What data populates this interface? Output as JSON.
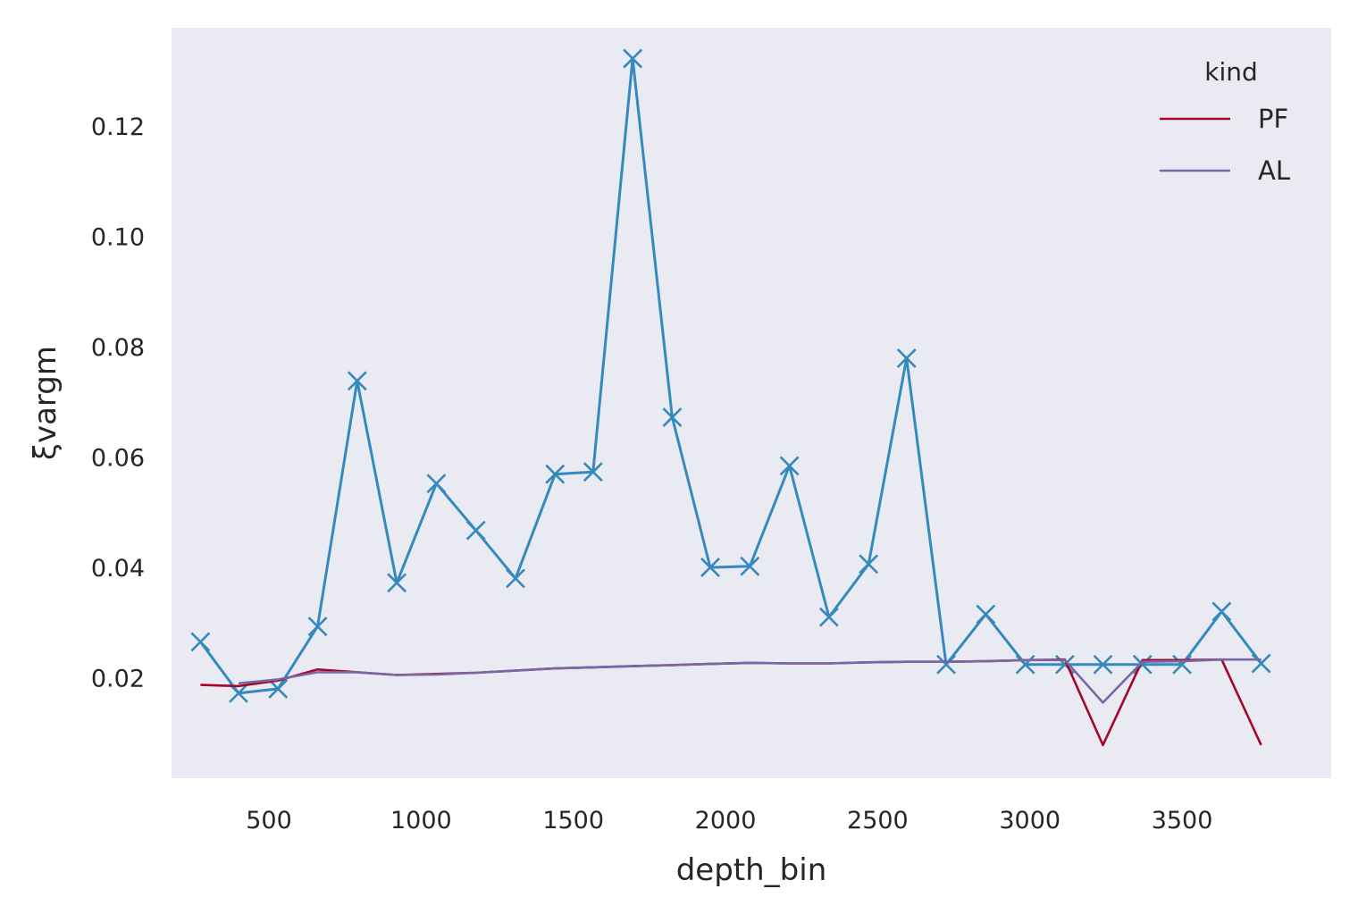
{
  "chart_data": {
    "type": "line",
    "xlabel": "depth_bin",
    "ylabel": "ξvargm",
    "xlim": [
      180,
      3990
    ],
    "ylim": [
      0.0018,
      0.1378
    ],
    "xticks": [
      500,
      1000,
      1500,
      2000,
      2500,
      3000,
      3500
    ],
    "xtick_labels": [
      "500",
      "1000",
      "1500",
      "2000",
      "2500",
      "3000",
      "3500"
    ],
    "yticks": [
      0.02,
      0.04,
      0.06,
      0.08,
      0.1,
      0.12
    ],
    "ytick_labels": [
      "0.02",
      "0.04",
      "0.06",
      "0.08",
      "0.10",
      "0.12"
    ],
    "grid": false,
    "legend": {
      "title": "kind",
      "position": "top-right"
    },
    "series": [
      {
        "name": "PF",
        "color": "#a60628",
        "marker": "none",
        "legend": true,
        "x": [
          275,
          400,
          530,
          660,
          790,
          920,
          1050,
          1180,
          1310,
          1440,
          1565,
          1695,
          1825,
          1950,
          2080,
          2210,
          2340,
          2470,
          2595,
          2725,
          2855,
          2985,
          3115,
          3240,
          3370,
          3500,
          3630,
          3760
        ],
        "y": [
          0.0187,
          0.0185,
          0.0195,
          0.0215,
          0.021,
          0.0205,
          0.0207,
          0.0209,
          0.0213,
          0.0217,
          0.0219,
          0.0221,
          0.0223,
          0.0225,
          0.0227,
          0.0226,
          0.0226,
          0.0228,
          0.0229,
          0.0229,
          0.023,
          0.0232,
          0.0233,
          0.0078,
          0.0232,
          0.0232,
          0.0233,
          0.0078
        ]
      },
      {
        "name": "AL",
        "color": "#7a68a6",
        "marker": "none",
        "legend": true,
        "x": [
          400,
          530,
          660,
          790,
          920,
          1050,
          1180,
          1310,
          1440,
          1565,
          1695,
          1825,
          1950,
          2080,
          2210,
          2340,
          2470,
          2595,
          2725,
          2855,
          2985,
          3115,
          3240,
          3370,
          3500,
          3630,
          3760
        ],
        "y": [
          0.019,
          0.0197,
          0.021,
          0.021,
          0.0205,
          0.0206,
          0.0209,
          0.0213,
          0.0217,
          0.0219,
          0.0221,
          0.0223,
          0.0225,
          0.0227,
          0.0226,
          0.0226,
          0.0228,
          0.0229,
          0.0229,
          0.023,
          0.0232,
          0.0232,
          0.0155,
          0.0229,
          0.023,
          0.0233,
          0.0233
        ]
      },
      {
        "name": "",
        "color": "#348abd",
        "marker": "x",
        "legend": false,
        "x": [
          275,
          400,
          530,
          660,
          790,
          920,
          1050,
          1180,
          1310,
          1440,
          1565,
          1695,
          1825,
          1950,
          2080,
          2210,
          2340,
          2470,
          2595,
          2725,
          2855,
          2985,
          3115,
          3240,
          3370,
          3500,
          3630,
          3760
        ],
        "y": [
          0.0265,
          0.0172,
          0.018,
          0.0293,
          0.0738,
          0.0372,
          0.0552,
          0.0467,
          0.038,
          0.0569,
          0.0573,
          0.1322,
          0.0672,
          0.04,
          0.0402,
          0.0584,
          0.031,
          0.0406,
          0.0779,
          0.0224,
          0.0315,
          0.0224,
          0.0224,
          0.0224,
          0.0224,
          0.0224,
          0.032,
          0.0226
        ]
      }
    ]
  }
}
